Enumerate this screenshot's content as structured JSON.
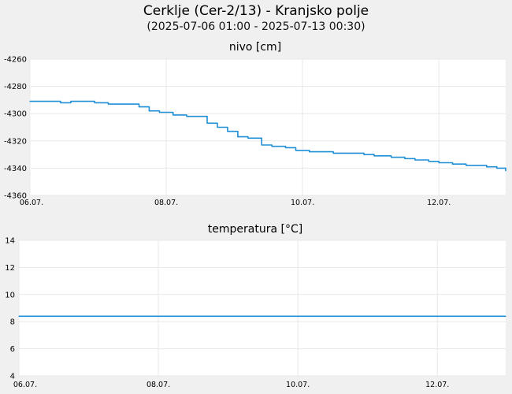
{
  "header": {
    "title": "Cerklje (Cer-2/13) - Kranjsko polje",
    "subtitle": "(2025-07-06 01:00 - 2025-07-13 00:30)"
  },
  "colors": {
    "background": "#f0f0f0",
    "plot_background": "#ffffff",
    "grid": "#e8e8e8",
    "line": "#1f8fd6"
  },
  "chart_data": [
    {
      "type": "line",
      "title": "nivo [cm]",
      "xlabel": "",
      "ylabel": "",
      "x_ticks": [
        "06.07.",
        "08.07.",
        "10.07.",
        "12.07."
      ],
      "x_tick_days": [
        0,
        2,
        4,
        6
      ],
      "xlim_days": [
        0,
        6.98
      ],
      "ylim": [
        -4360,
        -4260
      ],
      "y_ticks": [
        -4260,
        -4280,
        -4300,
        -4320,
        -4340,
        -4360
      ],
      "grid": true,
      "series": [
        {
          "x_days": [
            0,
            0.15,
            0.3,
            0.45,
            0.6,
            0.8,
            0.95,
            1.0,
            1.15,
            1.3,
            1.45,
            1.6,
            1.75,
            1.9,
            2.1,
            2.25,
            2.3,
            2.45,
            2.6,
            2.75,
            2.9,
            3.05,
            3.2,
            3.4,
            3.55,
            3.75,
            3.9,
            4.1,
            4.3,
            4.45,
            4.6,
            4.75,
            4.9,
            5.05,
            5.3,
            5.5,
            5.65,
            5.85,
            6.0,
            6.2,
            6.4,
            6.55,
            6.7,
            6.85,
            6.98
          ],
          "values": [
            -4291,
            -4291,
            -4291,
            -4292,
            -4291,
            -4291,
            -4292,
            -4292,
            -4293,
            -4293,
            -4293,
            -4295,
            -4298,
            -4299,
            -4301,
            -4301,
            -4302,
            -4302,
            -4307,
            -4310,
            -4313,
            -4317,
            -4318,
            -4323,
            -4324,
            -4325,
            -4327,
            -4328,
            -4328,
            -4329,
            -4329,
            -4329,
            -4330,
            -4331,
            -4332,
            -4333,
            -4334,
            -4335,
            -4336,
            -4337,
            -4338,
            -4338,
            -4339,
            -4340,
            -4342
          ]
        }
      ]
    },
    {
      "type": "line",
      "title": "temperatura [°C]",
      "xlabel": "",
      "ylabel": "",
      "x_ticks": [
        "06.07.",
        "08.07.",
        "10.07.",
        "12.07."
      ],
      "x_tick_days": [
        0,
        2,
        4,
        6
      ],
      "xlim_days": [
        0,
        6.98
      ],
      "ylim": [
        4,
        14
      ],
      "y_ticks": [
        14,
        12,
        10,
        8,
        6,
        4
      ],
      "grid": true,
      "series": [
        {
          "x_days": [
            0,
            6.98
          ],
          "values": [
            8.4,
            8.4
          ]
        }
      ]
    }
  ]
}
